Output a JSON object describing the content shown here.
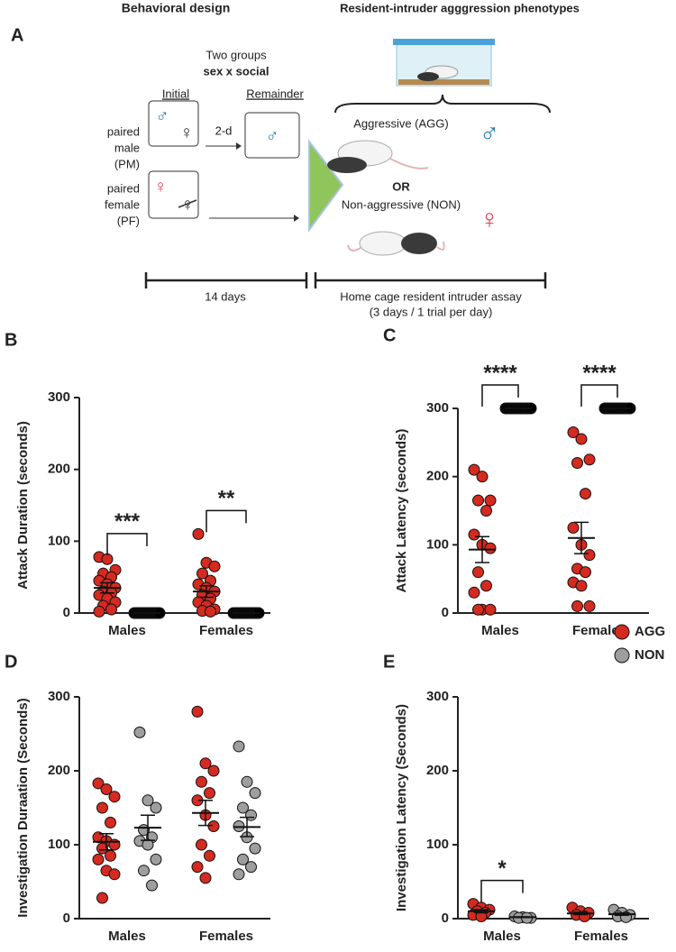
{
  "panel_a": {
    "label": "A",
    "titles": [
      "Behavioral design",
      "Resident-intruder agggression phenotypes"
    ],
    "groups_line1": "Two groups",
    "groups_line2": "sex x social",
    "initial": "Initial",
    "remainder": "Remainder",
    "pm_label": [
      "paired",
      "male",
      "(PM)"
    ],
    "pf_label": [
      "paired",
      "female",
      "(PF)"
    ],
    "interval": "2-d",
    "male_symbol": "♂",
    "female_symbol": "♀",
    "aggressive": "Aggressive (AGG)",
    "or": "OR",
    "non_aggressive": "Non-aggressive (NON)",
    "duration": "14 days",
    "assay": [
      "Home cage resident intruder assay",
      "(3 days / 1 trial per day)"
    ]
  },
  "chart_data": [
    {
      "type": "dot",
      "panel": "B",
      "y_label": "Attack Duration (seconds)",
      "categories": [
        "Males",
        "Females"
      ],
      "ylim": [
        0,
        300
      ],
      "yticks": [
        0,
        100,
        200,
        300
      ],
      "significance": [
        "***",
        "**"
      ],
      "series": [
        {
          "color": "#d42a20",
          "values": [
            [
              78,
              75,
              60,
              55,
              50,
              45,
              40,
              35,
              30,
              28,
              25,
              20,
              15,
              10,
              5,
              2
            ],
            [
              110,
              70,
              65,
              55,
              45,
              40,
              35,
              30,
              25,
              20,
              15,
              10,
              5,
              3,
              2
            ]
          ],
          "mean": [
            35,
            30
          ],
          "sem": [
            7,
            8
          ]
        },
        {
          "color": "#000000",
          "values": [
            [
              0,
              0,
              0,
              0,
              0,
              0,
              0,
              0,
              0,
              0,
              0,
              0
            ],
            [
              0,
              0,
              0,
              0,
              0,
              0,
              0,
              0,
              0,
              0,
              0,
              0
            ]
          ],
          "mean": [
            0,
            0
          ],
          "sem": [
            0,
            0
          ]
        }
      ]
    },
    {
      "type": "dot",
      "panel": "C",
      "y_label": "Attack Latency (seconds)",
      "categories": [
        "Males",
        "Females"
      ],
      "ylim": [
        0,
        300
      ],
      "yticks": [
        0,
        100,
        200,
        300
      ],
      "significance": [
        "****",
        "****"
      ],
      "series": [
        {
          "color": "#d42a20",
          "values": [
            [
              210,
              200,
              165,
              165,
              150,
              115,
              100,
              95,
              60,
              40,
              30,
              5,
              5,
              5
            ],
            [
              265,
              255,
              225,
              220,
              175,
              125,
              100,
              85,
              65,
              60,
              45,
              40,
              10,
              10
            ]
          ],
          "mean": [
            93,
            110
          ],
          "sem": [
            19,
            23
          ]
        },
        {
          "color": "#000000",
          "values": [
            [
              300,
              300,
              300,
              300,
              300,
              300,
              300,
              300,
              300,
              300,
              300,
              300
            ],
            [
              300,
              300,
              300,
              300,
              300,
              300,
              300,
              300,
              300,
              300,
              300,
              300
            ]
          ],
          "mean": [
            300,
            300
          ],
          "sem": [
            0,
            0
          ]
        }
      ]
    },
    {
      "type": "dot",
      "panel": "D",
      "y_label": "Investigation Duraation (Seconds)",
      "categories": [
        "Males",
        "Females"
      ],
      "ylim": [
        0,
        300
      ],
      "yticks": [
        0,
        100,
        200,
        300
      ],
      "series": [
        {
          "color": "#d42a20",
          "values": [
            [
              183,
              175,
              165,
              150,
              130,
              110,
              105,
              100,
              95,
              85,
              80,
              65,
              60,
              28
            ],
            [
              280,
              210,
              200,
              185,
              170,
              160,
              140,
              125,
              100,
              85,
              70,
              55
            ]
          ],
          "mean": [
            104,
            143
          ],
          "sem": [
            11,
            17
          ]
        },
        {
          "color": "#9e9e9e",
          "values": [
            [
              252,
              160,
              150,
              120,
              110,
              105,
              100,
              80,
              65,
              45
            ],
            [
              233,
              185,
              170,
              150,
              140,
              125,
              110,
              95,
              80,
              70,
              60
            ]
          ],
          "mean": [
            123,
            124
          ],
          "sem": [
            17,
            13
          ]
        }
      ]
    },
    {
      "type": "dot",
      "panel": "E",
      "y_label": "Investigation Latency (Seconds)",
      "categories": [
        "Males",
        "Females"
      ],
      "ylim": [
        0,
        300
      ],
      "yticks": [
        0,
        100,
        200,
        300
      ],
      "significance": [
        "*",
        null
      ],
      "legend": "top-right",
      "series": [
        {
          "name": "AGG",
          "color": "#d42a20",
          "values": [
            [
              20,
              15,
              12,
              10,
              8,
              5,
              3
            ],
            [
              15,
              10,
              8,
              5,
              3
            ]
          ],
          "mean": [
            10,
            7
          ],
          "sem": [
            2,
            1.5
          ]
        },
        {
          "name": "NON",
          "color": "#9e9e9e",
          "values": [
            [
              3,
              2,
              1,
              1,
              1
            ],
            [
              12,
              8,
              5,
              3,
              2
            ]
          ],
          "mean": [
            2,
            6
          ],
          "sem": [
            0.5,
            1.5
          ]
        }
      ]
    }
  ]
}
